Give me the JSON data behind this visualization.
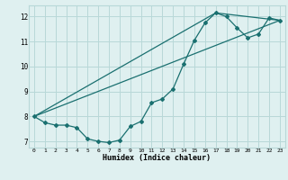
{
  "title": "",
  "xlabel": "Humidex (Indice chaleur)",
  "bg_color": "#dff0f0",
  "grid_color": "#b8d8d8",
  "line_color": "#1a7070",
  "xlim": [
    -0.5,
    23.5
  ],
  "ylim": [
    6.75,
    12.45
  ],
  "xticks": [
    0,
    1,
    2,
    3,
    4,
    5,
    6,
    7,
    8,
    9,
    10,
    11,
    12,
    13,
    14,
    15,
    16,
    17,
    18,
    19,
    20,
    21,
    22,
    23
  ],
  "yticks": [
    7,
    8,
    9,
    10,
    11,
    12
  ],
  "line1_x": [
    0,
    1,
    2,
    3,
    4,
    5,
    6,
    7,
    8,
    9,
    10,
    11,
    12,
    13,
    14,
    15,
    16,
    17,
    18,
    19,
    20,
    21,
    22,
    23
  ],
  "line1_y": [
    8.0,
    7.75,
    7.65,
    7.65,
    7.55,
    7.1,
    7.0,
    6.95,
    7.05,
    7.6,
    7.8,
    8.55,
    8.7,
    9.1,
    10.1,
    11.05,
    11.75,
    12.15,
    12.0,
    11.55,
    11.15,
    11.3,
    11.95,
    11.85
  ],
  "line2_x": [
    0,
    23
  ],
  "line2_y": [
    8.0,
    11.85
  ],
  "line3_x": [
    0,
    17,
    23
  ],
  "line3_y": [
    8.0,
    12.15,
    11.85
  ]
}
